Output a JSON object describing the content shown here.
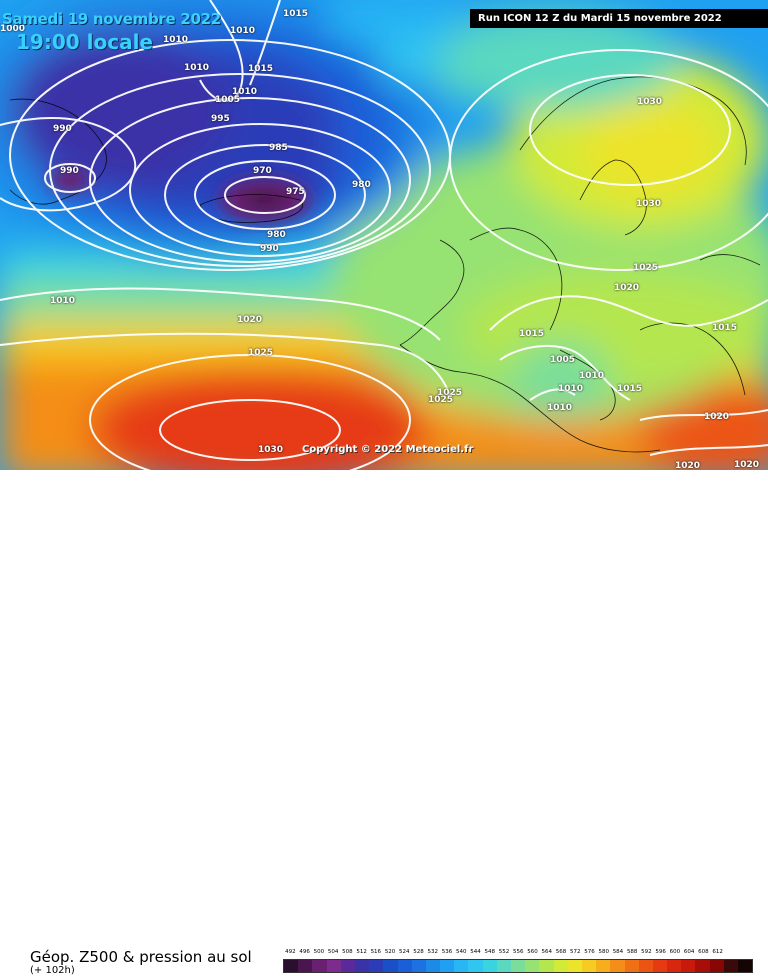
{
  "header": {
    "date": "Samedi 19 novembre 2022",
    "time": "19:00 locale",
    "run": "Run ICON 12 Z du Mardi 15 novembre 2022"
  },
  "copyright": "Copyright © 2022 Meteociel.fr",
  "footer": {
    "title": "Géop. Z500 & pression au sol",
    "subtitle": "(+ 102h)"
  },
  "legend": {
    "values": [
      "492",
      "496",
      "500",
      "504",
      "508",
      "512",
      "516",
      "520",
      "524",
      "528",
      "532",
      "536",
      "540",
      "544",
      "548",
      "552",
      "556",
      "560",
      "564",
      "568",
      "572",
      "576",
      "580",
      "584",
      "588",
      "592",
      "596",
      "600",
      "604",
      "608",
      "612"
    ],
    "colors": [
      "#2a0f2f",
      "#4a1650",
      "#6a2070",
      "#7d2b8c",
      "#5a2a9a",
      "#3a33a8",
      "#2a3cb8",
      "#1a4fc8",
      "#1a5fd8",
      "#1c72e0",
      "#1e8ae8",
      "#20a0f0",
      "#28b6f4",
      "#30c6f0",
      "#3ad4e0",
      "#5ad8c0",
      "#7ade9a",
      "#96e272",
      "#b4e650",
      "#d2ea38",
      "#ece42a",
      "#f6cc22",
      "#f6ae1c",
      "#f48e18",
      "#f07016",
      "#ec5414",
      "#e63a12",
      "#d8260f",
      "#c81a0c",
      "#a80e08",
      "#880604"
    ],
    "swatch_colors": [
      "#2a0f2f",
      "#4a1650",
      "#6a2070",
      "#7d2b8c",
      "#5a2a9a",
      "#3a33a8",
      "#2a3cb8",
      "#1a4fc8",
      "#1a5fd8",
      "#1c72e0",
      "#1e8ae8",
      "#20a0f0",
      "#28b6f4",
      "#30c6f0",
      "#3ad4e0",
      "#5ad8c0",
      "#7ade9a",
      "#96e272",
      "#b4e650",
      "#d2ea38",
      "#ece42a",
      "#f6cc22",
      "#f6ae1c",
      "#f48e18",
      "#f07016",
      "#ec5414",
      "#e63a12",
      "#d8260f",
      "#c81a0c",
      "#a80e08",
      "#880604",
      "#3a0a0a",
      "#140404"
    ],
    "label_values": [
      "492",
      "496",
      "500",
      "504",
      "508",
      "512",
      "516",
      "520",
      "524",
      "528",
      "532",
      "536",
      "540",
      "544",
      "548",
      "552",
      "556",
      "560",
      "564",
      "568",
      "572",
      "576",
      "580",
      "584",
      "588",
      "592",
      "596",
      "600",
      "604",
      "608",
      "612"
    ]
  },
  "isobars": [
    "1015",
    "1010",
    "1010",
    "1010",
    "1015",
    "1010",
    "1005",
    "995",
    "990",
    "990",
    "985",
    "970",
    "975",
    "980",
    "980",
    "990",
    "1010",
    "1020",
    "1025",
    "1030",
    "1030",
    "1030",
    "1025",
    "1020",
    "1015",
    "1005",
    "1010",
    "1010",
    "1010",
    "1015",
    "1025",
    "1025",
    "1020",
    "1020",
    "1015",
    "1020",
    "1000"
  ]
}
